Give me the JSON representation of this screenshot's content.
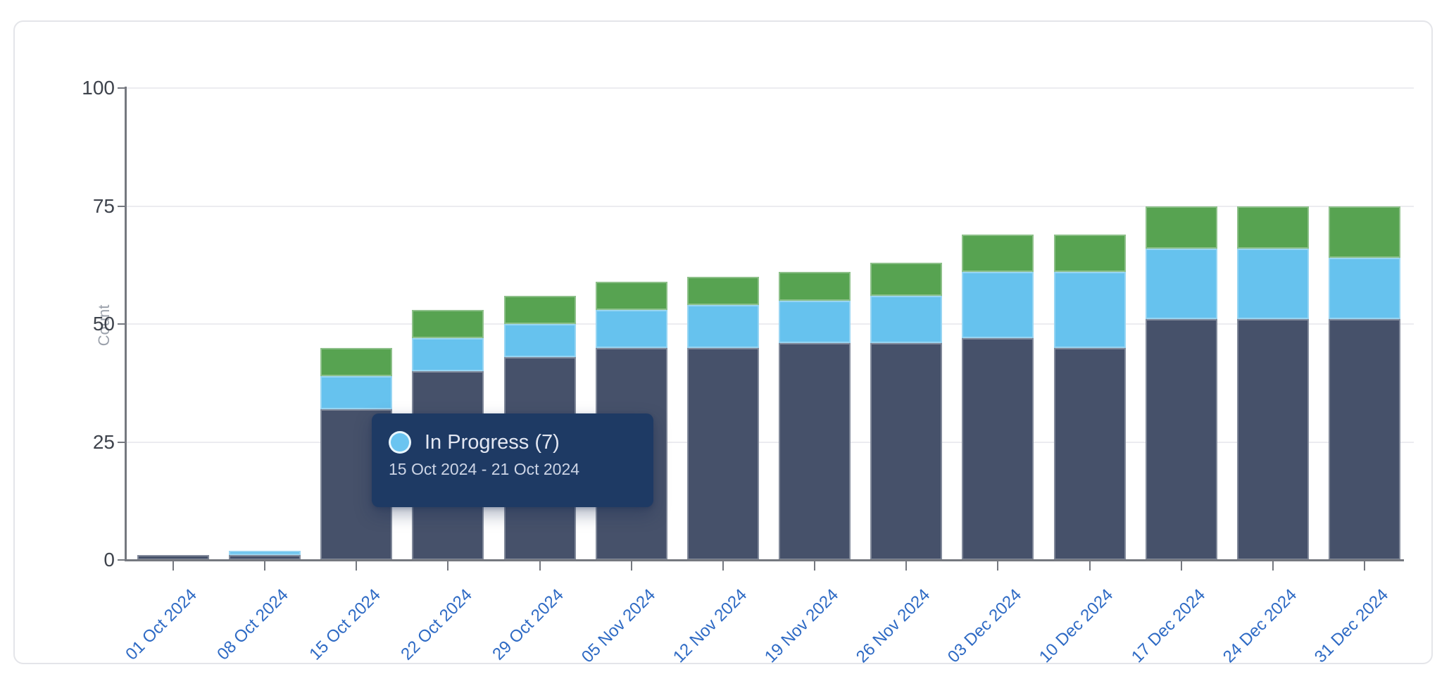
{
  "chart_data": {
    "type": "bar",
    "stacked": true,
    "orientation": "vertical",
    "ylabel": "Count",
    "ylim": [
      0,
      100
    ],
    "yticks": [
      0,
      25,
      50,
      75,
      100
    ],
    "grid": "horizontal",
    "legend_position": "none",
    "x_label_rotation_deg": -45,
    "categories": [
      "01 Oct 2024",
      "08 Oct 2024",
      "15 Oct 2024",
      "22 Oct 2024",
      "29 Oct 2024",
      "05 Nov 2024",
      "12 Nov 2024",
      "19 Nov 2024",
      "26 Nov 2024",
      "03 Dec 2024",
      "10 Dec 2024",
      "17 Dec 2024",
      "24 Dec 2024",
      "31 Dec 2024"
    ],
    "series": [
      {
        "id": "dark-segment",
        "label": "",
        "color": "#46516a",
        "values": [
          1,
          1,
          32,
          40,
          43,
          45,
          45,
          46,
          46,
          47,
          45,
          51,
          51,
          51
        ]
      },
      {
        "id": "in-progress-segment",
        "label": "In Progress",
        "color": "#66c2ee",
        "values": [
          0,
          1,
          7,
          7,
          7,
          8,
          9,
          9,
          10,
          14,
          16,
          15,
          15,
          13
        ]
      },
      {
        "id": "green-segment",
        "label": "",
        "color": "#57a351",
        "values": [
          0,
          0,
          6,
          6,
          6,
          6,
          6,
          6,
          7,
          8,
          8,
          9,
          9,
          11
        ]
      }
    ],
    "totals": [
      1,
      2,
      45,
      53,
      56,
      59,
      60,
      61,
      63,
      69,
      69,
      75,
      75,
      75
    ]
  },
  "tooltip": {
    "title": "In Progress (7)",
    "date_range": "15 Oct 2024 - 21 Oct 2024",
    "marker_color": "#6ac4f0",
    "bg_color": "#1e3a64"
  },
  "colors": {
    "x_label": "#2e6ac4",
    "y_label": "#3e434c",
    "axis": "#75787f",
    "gridline": "#ececf0",
    "card_border": "#e4e5e9",
    "background": "#ffffff"
  }
}
